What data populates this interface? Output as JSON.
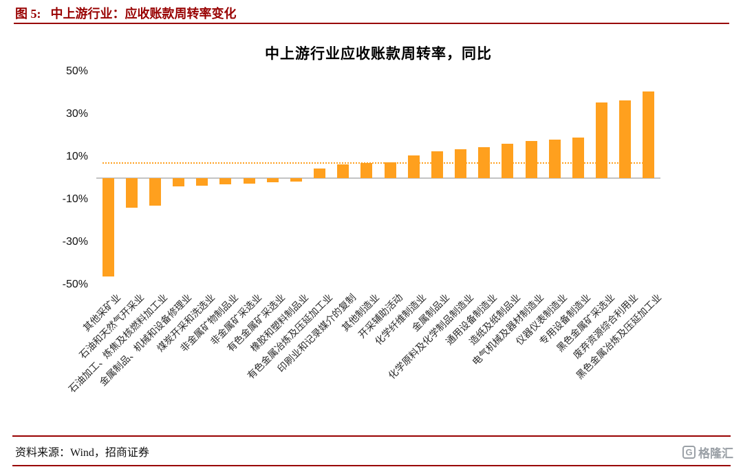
{
  "header": {
    "figure_label": "图 5:",
    "figure_title": "中上游行业：应收账款周转率变化"
  },
  "chart_data": {
    "type": "bar",
    "title": "中上游行业应收账款周转率，同比",
    "categories": [
      "其他采矿业",
      "石油和天然气开采业",
      "石油加工、炼焦及核燃料加工业",
      "金属制品、机械和设备修理业",
      "煤炭开采和洗选业",
      "非金属矿物制品业",
      "非金属矿采选业",
      "有色金属矿采选业",
      "橡胶和塑料制品业",
      "有色金属冶炼及压延加工业",
      "印刷业和记录媒介的复制",
      "其他制造业",
      "开采辅助活动",
      "化学纤维制造业",
      "金属制品业",
      "化学原料及化学制品制造业",
      "通用设备制造业",
      "造纸及纸制品业",
      "电气机械及器材制造业",
      "仪器仪表制造业",
      "专用设备制造业",
      "黑色金属矿采选业",
      "废弃资源综合利用业",
      "黑色金属冶炼及压延加工业"
    ],
    "values": [
      -46,
      -14,
      -13,
      -4,
      -3.5,
      -3,
      -2.5,
      -2,
      -1.5,
      4.5,
      6.5,
      7,
      7.5,
      10.5,
      12.5,
      13.5,
      14.5,
      16,
      17.5,
      18,
      19,
      35.5,
      36.5,
      40.5
    ],
    "unit": "%",
    "ylim": [
      -50,
      50
    ],
    "ytick_labels": [
      "50%",
      "30%",
      "10%",
      "-10%",
      "-30%",
      "-50%"
    ],
    "ytick_values": [
      50,
      30,
      10,
      -10,
      -30,
      -50
    ],
    "reference_line_value": 7.5,
    "bar_color": "#ffa01e",
    "reference_line_color": "#ffa01e",
    "grid": false,
    "legend_position": "none",
    "xlabel": "",
    "ylabel": ""
  },
  "footer": {
    "source": "资料来源：Wind，招商证券"
  },
  "watermark": {
    "icon_letter": "G",
    "logo_text": "格隆汇"
  },
  "colors": {
    "accent_red": "#980000",
    "bar_orange": "#ffa01e",
    "zero_line_gray": "#c3c3c3"
  }
}
